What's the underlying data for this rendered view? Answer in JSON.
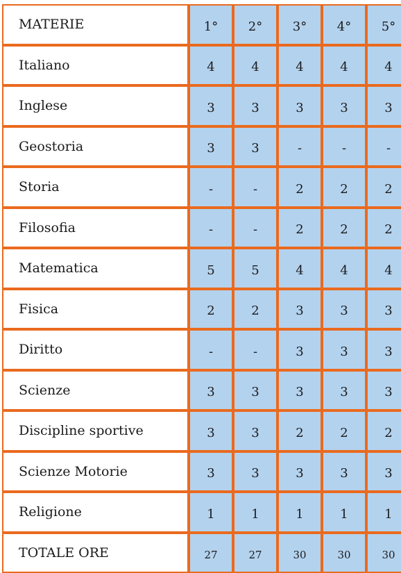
{
  "header": {
    "subject": "MATERIE",
    "years": [
      "1°",
      "2°",
      "3°",
      "4°",
      "5°"
    ]
  },
  "rows": [
    {
      "subject": "Italiano",
      "values": [
        "4",
        "4",
        "4",
        "4",
        "4"
      ]
    },
    {
      "subject": "Inglese",
      "values": [
        "3",
        "3",
        "3",
        "3",
        "3"
      ]
    },
    {
      "subject": "Geostoria",
      "values": [
        "3",
        "3",
        "-",
        "-",
        "-"
      ]
    },
    {
      "subject": "Storia",
      "values": [
        "-",
        "-",
        "2",
        "2",
        "2"
      ]
    },
    {
      "subject": "Filosofia",
      "values": [
        "-",
        "-",
        "2",
        "2",
        "2"
      ]
    },
    {
      "subject": "Matematica",
      "values": [
        "5",
        "5",
        "4",
        "4",
        "4"
      ]
    },
    {
      "subject": "Fisica",
      "values": [
        "2",
        "2",
        "3",
        "3",
        "3"
      ]
    },
    {
      "subject": "Diritto",
      "values": [
        "-",
        "-",
        "3",
        "3",
        "3"
      ]
    },
    {
      "subject": "Scienze",
      "values": [
        "3",
        "3",
        "3",
        "3",
        "3"
      ]
    },
    {
      "subject": "Discipline sportive",
      "values": [
        "3",
        "3",
        "2",
        "2",
        "2"
      ]
    },
    {
      "subject": "Scienze Motorie",
      "values": [
        "3",
        "3",
        "3",
        "3",
        "3"
      ]
    },
    {
      "subject": "Religione",
      "values": [
        "1",
        "1",
        "1",
        "1",
        "1"
      ]
    }
  ],
  "total": {
    "label": "TOTALE ORE",
    "values": [
      "27",
      "27",
      "30",
      "30",
      "30"
    ]
  },
  "colors": {
    "border": "#ea6a1e",
    "cell_fill": "#b3d2ee",
    "subject_fill": "#ffffff"
  }
}
